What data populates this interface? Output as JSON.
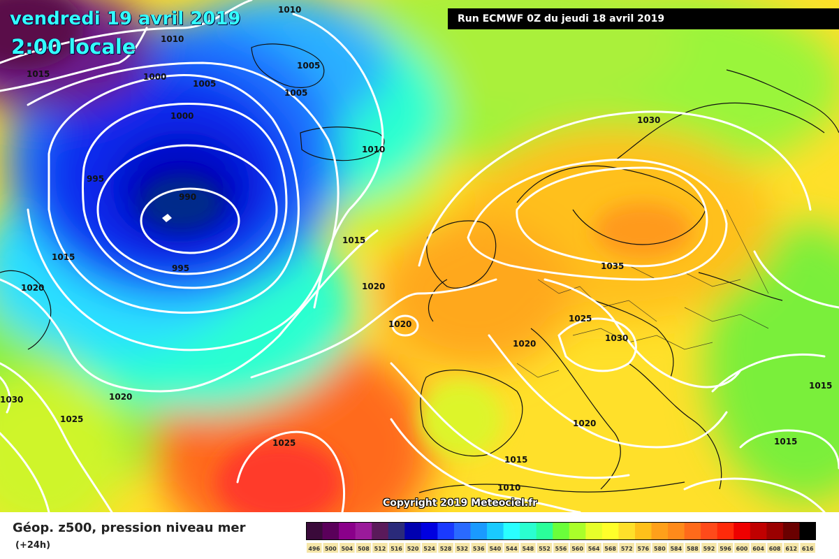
{
  "header": {
    "date": "vendredi 19 avril 2019",
    "time": "2:00 locale",
    "run": "Run ECMWF 0Z du jeudi 18 avril 2019"
  },
  "copyright": "Copyright 2019 Meteociel.fr",
  "footer": {
    "title": "Géop. z500, pression niveau mer",
    "subtitle": "(+24h)"
  },
  "legend": {
    "values": [
      "496",
      "500",
      "504",
      "508",
      "512",
      "516",
      "520",
      "524",
      "528",
      "532",
      "536",
      "540",
      "544",
      "548",
      "552",
      "556",
      "560",
      "564",
      "568",
      "572",
      "576",
      "580",
      "584",
      "588",
      "592",
      "596",
      "600",
      "604",
      "608",
      "612",
      "616"
    ],
    "colors": [
      "#3a0a3a",
      "#5a005a",
      "#8a008a",
      "#9a1a9a",
      "#5a1a5a",
      "#2a2a7a",
      "#0000b0",
      "#0000e0",
      "#1a3aff",
      "#2a6aff",
      "#1a9aff",
      "#1acaff",
      "#2affff",
      "#2affd0",
      "#2aff9a",
      "#6aff3a",
      "#aaff2a",
      "#e6ff2a",
      "#ffff2a",
      "#ffe02a",
      "#ffc01a",
      "#ffa01a",
      "#ff8a1a",
      "#ff6a1a",
      "#ff4a1a",
      "#ff2a0a",
      "#ee0000",
      "#c00000",
      "#9a0000",
      "#6a0000",
      "#000000"
    ]
  },
  "isobars": [
    {
      "value": "1010"
    },
    {
      "value": "1010"
    },
    {
      "value": "1015"
    },
    {
      "value": "1000"
    },
    {
      "value": "1005"
    },
    {
      "value": "1005"
    },
    {
      "value": "1005"
    },
    {
      "value": "1000"
    },
    {
      "value": "995"
    },
    {
      "value": "990"
    },
    {
      "value": "995"
    },
    {
      "value": "1010"
    },
    {
      "value": "1030"
    },
    {
      "value": "1015"
    },
    {
      "value": "1015"
    },
    {
      "value": "1020"
    },
    {
      "value": "1020"
    },
    {
      "value": "1020"
    },
    {
      "value": "1035"
    },
    {
      "value": "1025"
    },
    {
      "value": "1030"
    },
    {
      "value": "1020"
    },
    {
      "value": "1030"
    },
    {
      "value": "1020"
    },
    {
      "value": "1025"
    },
    {
      "value": "1025"
    },
    {
      "value": "1020"
    },
    {
      "value": "1015"
    },
    {
      "value": "1010"
    },
    {
      "value": "1015"
    },
    {
      "value": "1015"
    }
  ]
}
